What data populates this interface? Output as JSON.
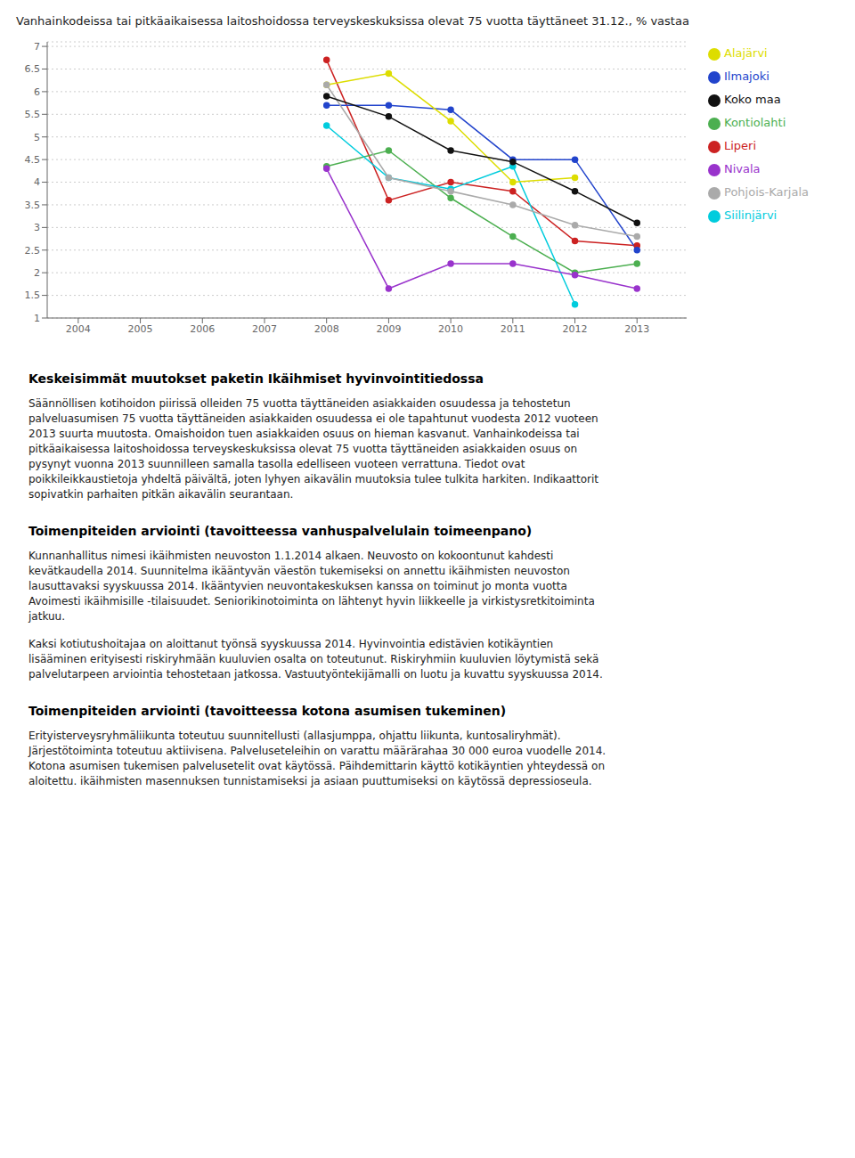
{
  "chart_data": {
    "type": "line",
    "title": "Vanhainkodeissa tai pitkäaikaisessa laitoshoidossa terveyskeskuksissa olevat 75 vuotta täyttäneet 31.12., % vastaa",
    "x": [
      2008,
      2009,
      2010,
      2011,
      2012,
      2013
    ],
    "series": [
      {
        "name": "Liperi",
        "color": "#cc2222",
        "values": [
          6.7,
          3.6,
          4.0,
          3.8,
          2.7,
          2.6
        ]
      },
      {
        "name": "Kontiolahti",
        "color": "#4caf50",
        "values": [
          4.35,
          4.7,
          3.65,
          2.8,
          2.0,
          2.2
        ]
      },
      {
        "name": "Ilmajoki",
        "color": "#2244cc",
        "values": [
          5.7,
          5.7,
          5.6,
          4.5,
          4.5,
          2.5
        ]
      },
      {
        "name": "Siilinjärvi",
        "color": "#00ccdd",
        "values": [
          5.25,
          4.1,
          3.85,
          4.35,
          1.3,
          null
        ]
      },
      {
        "name": "Alajärvi",
        "color": "#dddd00",
        "values": [
          6.15,
          6.4,
          5.35,
          4.0,
          4.1,
          null
        ]
      },
      {
        "name": "Nivala",
        "color": "#9933cc",
        "values": [
          4.3,
          1.65,
          2.2,
          2.2,
          1.95,
          1.65
        ]
      },
      {
        "name": "Pohjois-Karjala",
        "color": "#aaaaaa",
        "values": [
          6.15,
          4.1,
          3.8,
          3.5,
          3.05,
          2.8
        ]
      },
      {
        "name": "Koko maa",
        "color": "#111111",
        "values": [
          5.9,
          5.45,
          4.7,
          4.45,
          3.8,
          3.1
        ]
      }
    ],
    "xlim": [
      2003.5,
      2013.8
    ],
    "ylim": [
      1.0,
      7.1
    ],
    "xticks": [
      2004,
      2005,
      2006,
      2007,
      2008,
      2009,
      2010,
      2011,
      2012,
      2013
    ],
    "yticks": [
      1,
      1.5,
      2,
      2.5,
      3,
      3.5,
      4,
      4.5,
      5,
      5.5,
      6,
      6.5,
      7
    ],
    "grid": true,
    "legend": "right",
    "marker": "circle",
    "annotations": [
      [
        "Keskeisimmät muutokset paketin Ikäihmiset hyvinvointitiedossa"
      ],
      [
        "Säännöllisen kotihoidon piirissä olleiden 75 vuotta täyttäneiden asiakkaiden osuudessa ja tehostetun",
        "palveluasumisen 75 vuotta täyttäneiden asiakkaiden osuudessa ei ole tapahtunut vuodesta 2012 vuoteen",
        "2013 suurta muutosta. Omaishoidon tuen asiakkaiden osuus on hieman kasvanut. Vanhainkodeissa tai",
        "pitkäaikaisessa laitoshoidossa terveyskeskuksissa olevat 75 vuotta täyttäneiden asiakkaiden osuus on",
        "pysynyt vuonna 2013 suunnilleen samalla tasolla edelliseen vuoteen verrattuna. Tiedot ovat",
        "poikkileikkaustietoja yhdeltä päivältä, joten lyhyen aikavälin muutoksia tulee tulkita harkiten. Indikaattorit",
        "sopivatkin parhaiten pitkän aikavälin seurantaan."
      ],
      [
        "Toimenpiteiden arviointi (tavoitteessa vanhuspalvelulain toimeenpano)"
      ],
      [
        "Kunnanhallitus nimesi ikäihmisten neuvoston 1.1.2014 alkaen. Neuvosto on kokoontunut kahdesti",
        "kevätkaudella 2014. Suunnitelma ikääntyvän väestön tukemiseksi on annettu ikäihmisten neuvoston",
        "lausuttavaksi syyskuussa 2014. Ikääntyvien neuvontakeskuksen kanssa on toiminut jo monta vuotta",
        "Avoimesti ikäihmisille -tilaisuudet. Seniorikinotoiminta on lähtenyt hyvin liikkeelle ja virkistysretkitoiminta",
        "jatkuu."
      ],
      [
        "Kaksi kotiutushoitajaa on aloittanut työnsä syyskuussa 2014. Hyvinvointia edistävien kotikäyntien",
        "lisääminen erityisesti riskiryhmään kuuluvien osalta on toteutunut. Riskiryhmiin kuuluvien löytymistä sekä",
        "palvelutarpeen arviointia tehostetaan jatkossa. Vastuutyöntekijämalli on luotu ja kuvattu syyskuussa 2014."
      ],
      [
        "Toimenpiteiden arviointi (tavoitteessa kotona asumisen tukeminen)"
      ],
      [
        "Erityisterveysryhmäliikunta toteutuu suunnitellusti (allasjumppa, ohjattu liikunta, kuntosaliryhmät).",
        "Järjestötoiminta toteutuu aktiivisena. Palveluseteleihin on varattu määrärahaa 30 000 euroa vuodelle 2014.",
        "Kotona asumisen tukemisen palvelusetelit ovat käytössä. Päihdemittarin käyttö kotikäyntien yhteydessä on",
        "aloitettu. ikäihmisten masennuksen tunnistamiseksi ja asiaan puuttumiseksi on käytössä depressioseula."
      ]
    ]
  }
}
